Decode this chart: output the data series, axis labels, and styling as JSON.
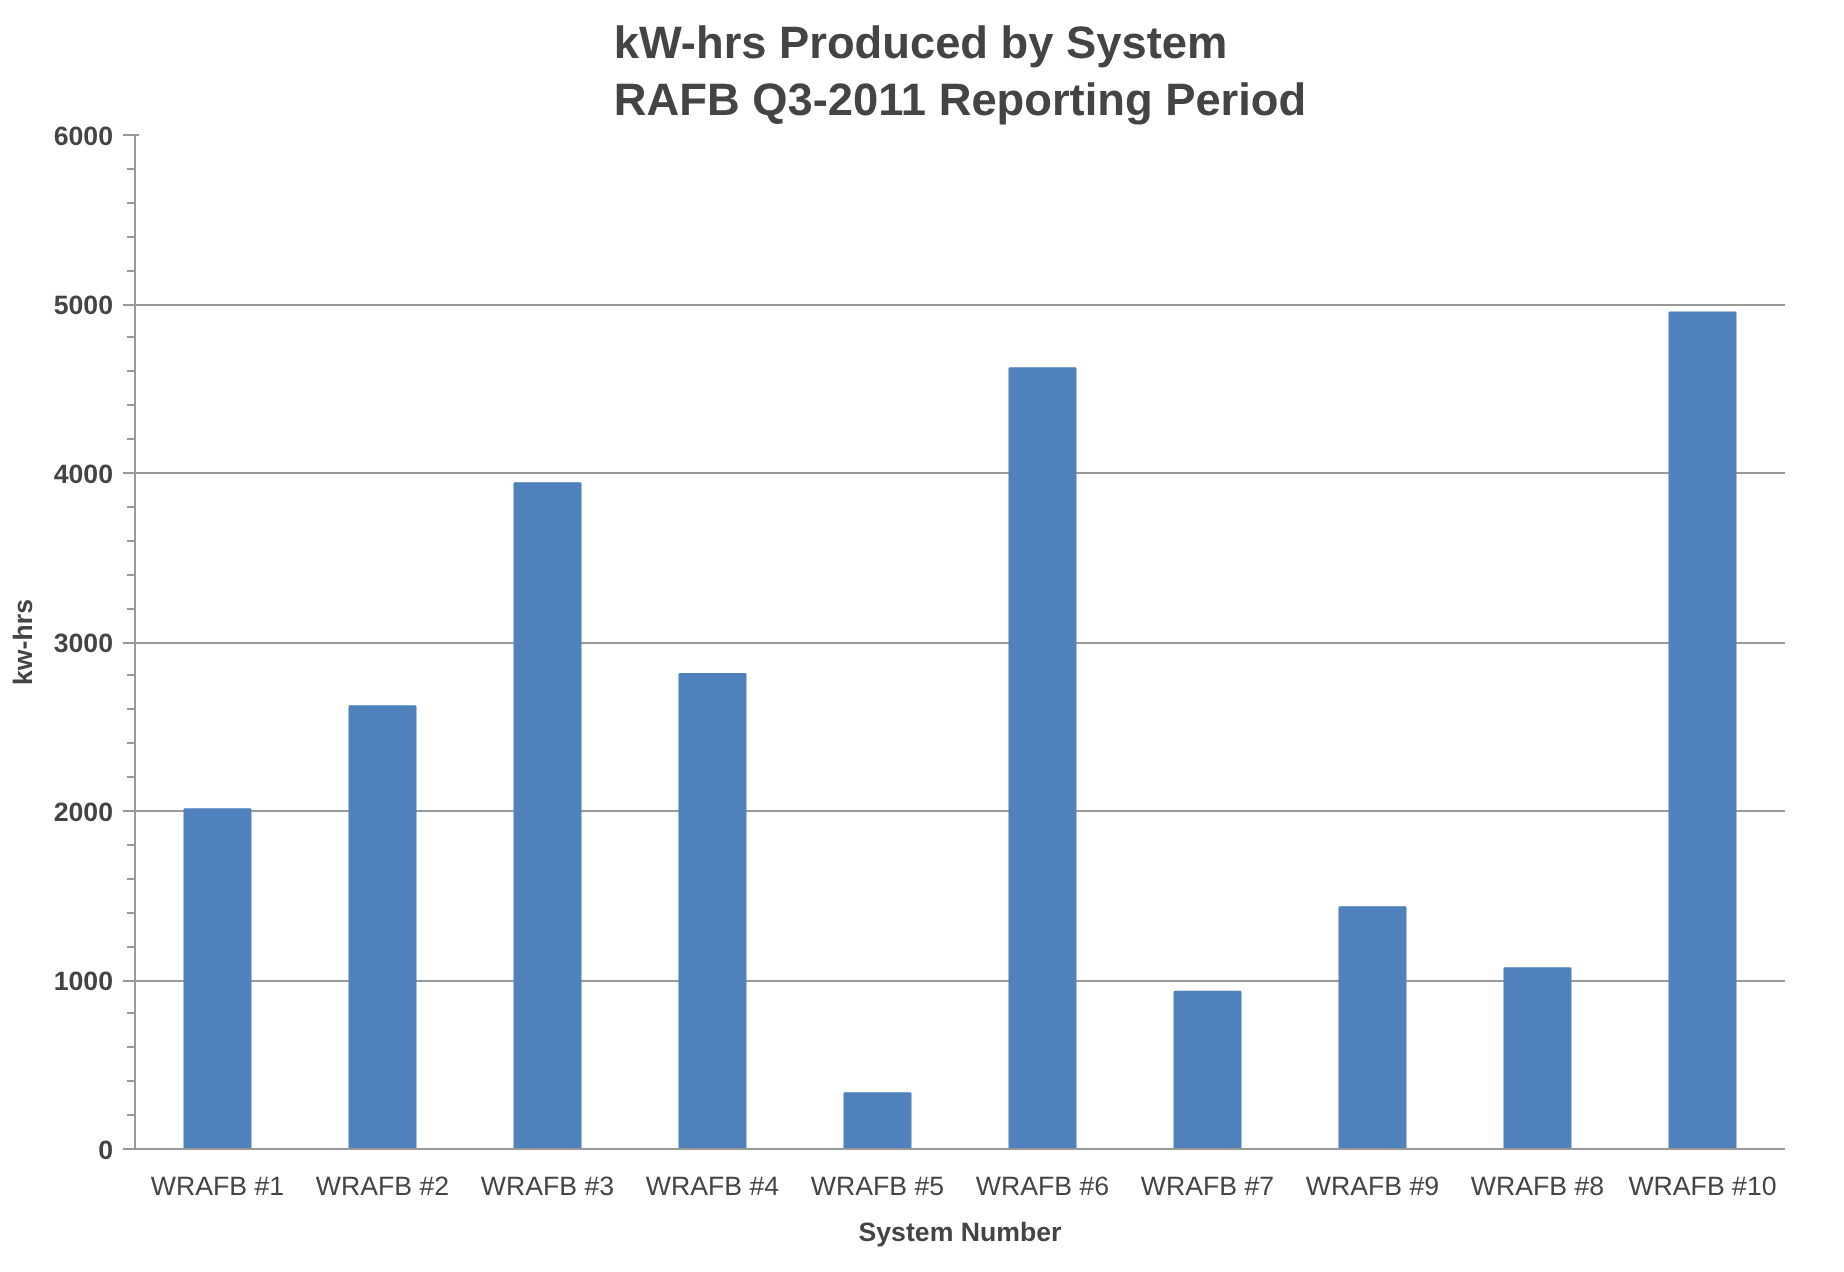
{
  "chart_data": {
    "type": "bar",
    "title": "kW-hrs Produced by System\nRAFB Q3-2011 Reporting Period",
    "xlabel": "System Number",
    "ylabel": "kw-hrs",
    "categories": [
      "WRAFB #1",
      "WRAFB #2",
      "WRAFB #3",
      "WRAFB #4",
      "WRAFB #5",
      "WRAFB #6",
      "WRAFB #7",
      "WRAFB #9",
      "WRAFB #8",
      "WRAFB #10"
    ],
    "values": [
      2010,
      2620,
      3940,
      2810,
      330,
      4620,
      930,
      1430,
      1070,
      4950
    ],
    "color": "#4f81bd",
    "ylim": [
      0,
      6000
    ],
    "yticks": [
      0,
      1000,
      2000,
      3000,
      4000,
      5000,
      6000
    ],
    "grid": "y"
  }
}
